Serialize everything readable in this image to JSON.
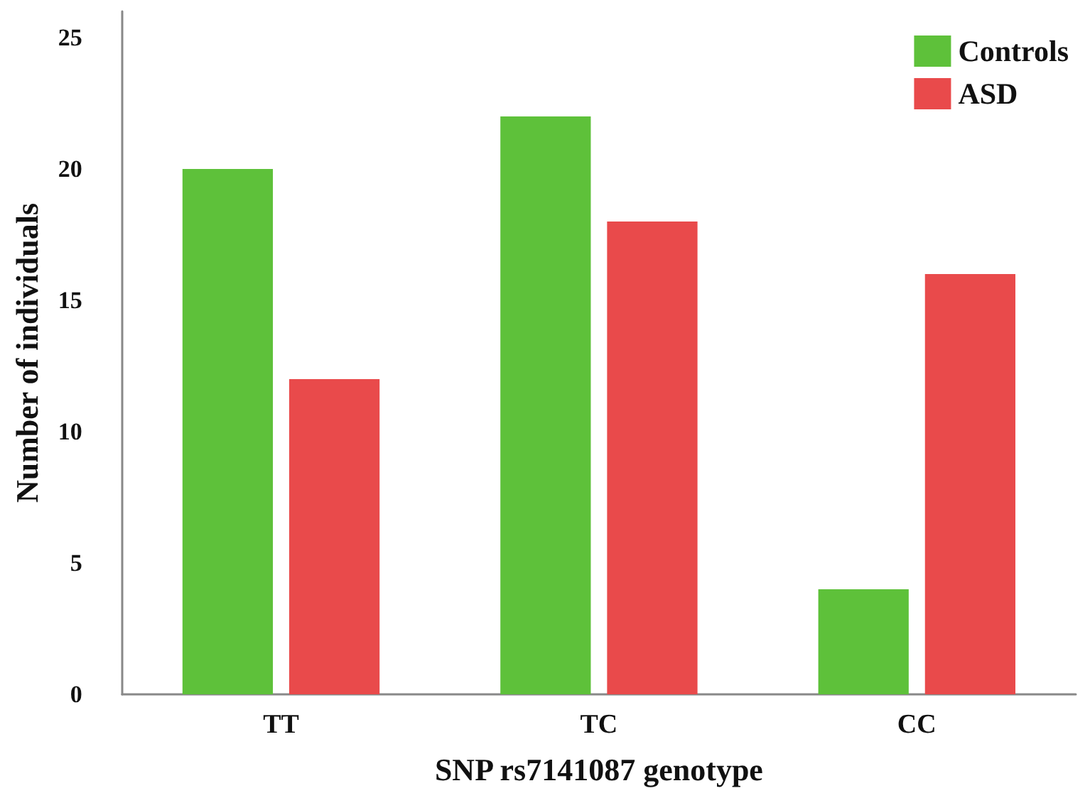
{
  "chart_data": {
    "type": "bar",
    "xlabel": "SNP rs7141087 genotype",
    "ylabel": "Number of individuals",
    "categories": [
      "TT",
      "TC",
      "CC"
    ],
    "series": [
      {
        "name": "Controls",
        "color": "#5ec13a",
        "values": [
          20,
          22,
          4
        ]
      },
      {
        "name": "ASD",
        "color": "#e94a4b",
        "values": [
          12,
          18,
          16
        ]
      }
    ],
    "ylim": [
      0,
      26
    ],
    "yticks": [
      0,
      5,
      10,
      15,
      20,
      25
    ],
    "grid": false,
    "legend": "top right"
  }
}
